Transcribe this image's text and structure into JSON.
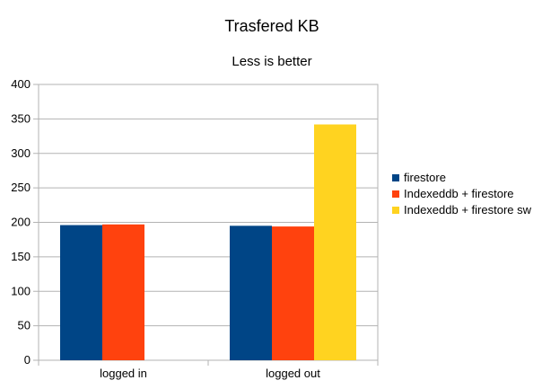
{
  "chart_data": {
    "type": "bar",
    "title": "Trasfered KB",
    "subtitle": "Less is better",
    "xlabel": "",
    "ylabel": "",
    "categories": [
      "logged in",
      "logged out"
    ],
    "series": [
      {
        "name": "firestore",
        "color": "#004586",
        "values": [
          196,
          195
        ]
      },
      {
        "name": "Indexeddb + firestore",
        "color": "#ff420e",
        "values": [
          197,
          194
        ]
      },
      {
        "name": "Indexeddb + firestore sw",
        "color": "#ffd320",
        "values": [
          null,
          342
        ]
      }
    ],
    "ylim": [
      0,
      400
    ],
    "yticks": [
      0,
      50,
      100,
      150,
      200,
      250,
      300,
      350,
      400
    ],
    "grid": true,
    "legend_position": "right"
  }
}
